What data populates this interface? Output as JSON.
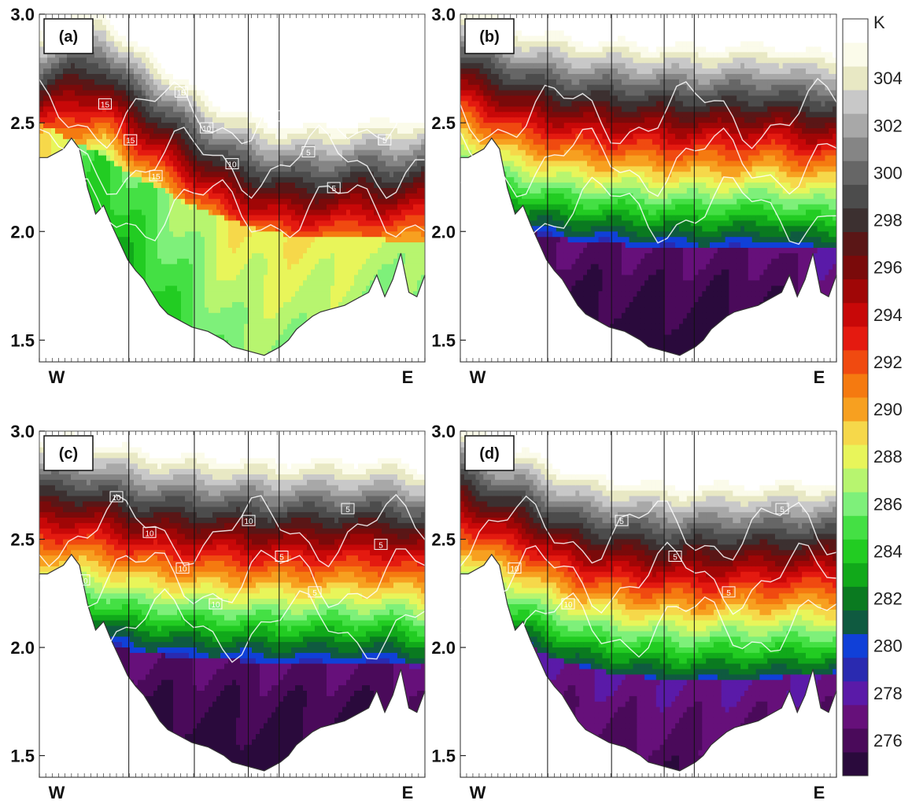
{
  "chart_data": [
    {
      "type": "heatmap",
      "panel_label": "(a)",
      "x_tick_labels": [
        "W",
        "E"
      ],
      "y_tick_labels": [
        "1.5",
        "2.0",
        "2.5",
        "3.0"
      ],
      "ylim": [
        1.4,
        3.0
      ],
      "contour_labels": [
        "15",
        "15",
        "15",
        "15",
        "15",
        "10",
        "10",
        "10",
        "5",
        "5",
        "5",
        "5",
        "5"
      ],
      "boundary_layer_top": [
        2.5,
        2.42,
        2.35,
        2.25,
        2.18,
        2.1,
        2.05,
        2.0,
        1.98,
        1.98,
        1.97,
        1.96,
        1.96
      ],
      "mixed_layer_temp_K": [
        290,
        286,
        284,
        285,
        286,
        287,
        288,
        288,
        288,
        288,
        287,
        287,
        286
      ]
    },
    {
      "type": "heatmap",
      "panel_label": "(b)",
      "x_tick_labels": [
        "W",
        "E"
      ],
      "y_tick_labels": [
        "1.5",
        "2.0",
        "2.5",
        "3.0"
      ],
      "ylim": [
        1.4,
        3.0
      ],
      "contour_labels": [],
      "boundary_layer_top": [
        2.15,
        2.05,
        2.0,
        1.97,
        1.95,
        1.94,
        1.93,
        1.92,
        1.92,
        1.92,
        1.93,
        1.93,
        1.93
      ],
      "mixed_layer_temp_K": [
        277,
        276,
        276,
        276,
        276,
        276,
        276,
        276,
        276,
        276,
        276,
        277,
        277
      ]
    },
    {
      "type": "heatmap",
      "panel_label": "(c)",
      "x_tick_labels": [
        "W",
        "E"
      ],
      "y_tick_labels": [
        "1.5",
        "2.0",
        "2.5",
        "3.0"
      ],
      "ylim": [
        1.4,
        3.0
      ],
      "contour_labels": [
        "10",
        "10",
        "10",
        "10",
        "10",
        "10",
        "5",
        "5",
        "5",
        "5"
      ],
      "boundary_layer_top": [
        2.15,
        2.08,
        2.02,
        1.98,
        1.96,
        1.95,
        1.94,
        1.93,
        1.93,
        1.93,
        1.93,
        1.93,
        1.93
      ],
      "mixed_layer_temp_K": [
        279,
        277,
        276,
        276,
        276,
        276,
        276,
        276,
        276,
        276,
        276,
        276,
        277
      ]
    },
    {
      "type": "heatmap",
      "panel_label": "(d)",
      "x_tick_labels": [
        "W",
        "E"
      ],
      "y_tick_labels": [
        "1.5",
        "2.0",
        "2.5",
        "3.0"
      ],
      "ylim": [
        1.4,
        3.0
      ],
      "contour_labels": [
        "10",
        "10",
        "5",
        "5",
        "5",
        "5"
      ],
      "boundary_layer_top": [
        2.2,
        2.1,
        2.02,
        1.95,
        1.9,
        1.88,
        1.86,
        1.85,
        1.85,
        1.86,
        1.86,
        1.87,
        1.87
      ],
      "mixed_layer_temp_K": [
        279,
        278,
        277,
        277,
        277,
        277,
        277,
        277,
        277,
        277,
        277,
        277,
        277
      ]
    }
  ],
  "colorbar": {
    "unit": "K",
    "tick_labels": [
      "304",
      "302",
      "300",
      "298",
      "296",
      "294",
      "292",
      "290",
      "288",
      "286",
      "284",
      "282",
      "280",
      "278",
      "276"
    ],
    "levels_K": [
      275,
      276,
      277,
      278,
      279,
      280,
      281,
      282,
      283,
      284,
      285,
      286,
      287,
      288,
      289,
      290,
      291,
      292,
      293,
      294,
      295,
      296,
      297,
      298,
      299,
      300,
      301,
      302,
      303,
      304,
      305
    ],
    "colors": [
      "#2a0a3c",
      "#4a0a5a",
      "#66107a",
      "#5a1aa8",
      "#2a2ab0",
      "#1040d8",
      "#0f5a40",
      "#0a7a20",
      "#11a91a",
      "#22cc22",
      "#44e044",
      "#7ef07a",
      "#b7f56f",
      "#e8f55a",
      "#f6d84a",
      "#f7a020",
      "#f57a10",
      "#f04a10",
      "#e41a10",
      "#c80808",
      "#a00606",
      "#7a0a0a",
      "#5a1616",
      "#3c3030",
      "#4c4c4c",
      "#666666",
      "#858585",
      "#a8a8a8",
      "#c8c8c8",
      "#e8e8c4",
      "#fbfbea",
      "#ffffff"
    ]
  }
}
